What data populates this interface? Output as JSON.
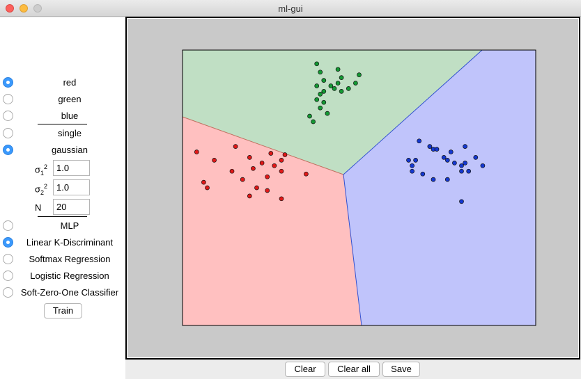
{
  "window": {
    "title": "ml-gui"
  },
  "options": [
    {
      "label": "red",
      "selected": true
    },
    {
      "label": "green",
      "selected": false
    },
    {
      "label": "blue",
      "selected": false
    },
    {
      "label": "single",
      "selected": false
    },
    {
      "label": "gaussian",
      "selected": true
    }
  ],
  "params": {
    "sigma1_label": "σ",
    "sigma1_sub": "1",
    "sigma1_sup": "2",
    "sigma1_value": "1.0",
    "sigma2_label": "σ",
    "sigma2_sub": "2",
    "sigma2_sup": "2",
    "sigma2_value": "1.0",
    "n_label": "N",
    "n_value": "20"
  },
  "models": [
    {
      "label": "MLP",
      "selected": false
    },
    {
      "label": "Linear K-Discriminant",
      "selected": true
    },
    {
      "label": "Softmax Regression",
      "selected": false
    },
    {
      "label": "Logistic Regression",
      "selected": false
    },
    {
      "label": "Soft-Zero-One Classifier",
      "selected": false
    }
  ],
  "buttons": {
    "train": "Train",
    "clear": "Clear",
    "clear_all": "Clear all",
    "save": "Save"
  },
  "colors": {
    "red_region": "#ffc0c0",
    "green_region": "#c0dfc4",
    "blue_region": "#c0c4fb",
    "red_point": "#e01818",
    "green_point": "#139833",
    "blue_point": "#1438d0",
    "background": "#c9c9c9"
  },
  "points": {
    "red": [
      [
        -0.92,
        0.26
      ],
      [
        -0.82,
        0.2
      ],
      [
        -0.7,
        0.3
      ],
      [
        -0.62,
        0.22
      ],
      [
        -0.72,
        0.12
      ],
      [
        -0.66,
        0.06
      ],
      [
        -0.6,
        0.14
      ],
      [
        -0.55,
        0.18
      ],
      [
        -0.5,
        0.25
      ],
      [
        -0.48,
        0.16
      ],
      [
        -0.44,
        0.12
      ],
      [
        -0.42,
        0.24
      ],
      [
        -0.44,
        0.2
      ],
      [
        -0.52,
        0.08
      ],
      [
        -0.58,
        0.0
      ],
      [
        -0.62,
        -0.06
      ],
      [
        -0.52,
        -0.02
      ],
      [
        -0.44,
        -0.08
      ],
      [
        -0.88,
        0.04
      ],
      [
        -0.86,
        0.0
      ],
      [
        -0.3,
        0.1
      ]
    ],
    "green": [
      [
        -0.24,
        0.9
      ],
      [
        -0.22,
        0.84
      ],
      [
        -0.2,
        0.78
      ],
      [
        -0.24,
        0.74
      ],
      [
        -0.2,
        0.7
      ],
      [
        -0.16,
        0.74
      ],
      [
        -0.12,
        0.76
      ],
      [
        -0.1,
        0.8
      ],
      [
        -0.06,
        0.72
      ],
      [
        -0.12,
        0.86
      ],
      [
        -0.14,
        0.72
      ],
      [
        -0.22,
        0.68
      ],
      [
        -0.24,
        0.64
      ],
      [
        -0.2,
        0.62
      ],
      [
        -0.22,
        0.58
      ],
      [
        -0.18,
        0.54
      ],
      [
        -0.28,
        0.52
      ],
      [
        -0.26,
        0.48
      ],
      [
        -0.1,
        0.7
      ],
      [
        0.0,
        0.82
      ],
      [
        -0.02,
        0.76
      ]
    ],
    "blue": [
      [
        0.34,
        0.34
      ],
      [
        0.4,
        0.3
      ],
      [
        0.42,
        0.28
      ],
      [
        0.44,
        0.28
      ],
      [
        0.48,
        0.22
      ],
      [
        0.52,
        0.26
      ],
      [
        0.5,
        0.2
      ],
      [
        0.54,
        0.18
      ],
      [
        0.58,
        0.16
      ],
      [
        0.6,
        0.18
      ],
      [
        0.58,
        0.12
      ],
      [
        0.62,
        0.12
      ],
      [
        0.6,
        0.3
      ],
      [
        0.66,
        0.22
      ],
      [
        0.7,
        0.16
      ],
      [
        0.28,
        0.2
      ],
      [
        0.3,
        0.16
      ],
      [
        0.32,
        0.2
      ],
      [
        0.3,
        0.12
      ],
      [
        0.36,
        0.1
      ],
      [
        0.42,
        0.06
      ],
      [
        0.58,
        -0.1
      ],
      [
        0.5,
        0.06
      ]
    ]
  }
}
